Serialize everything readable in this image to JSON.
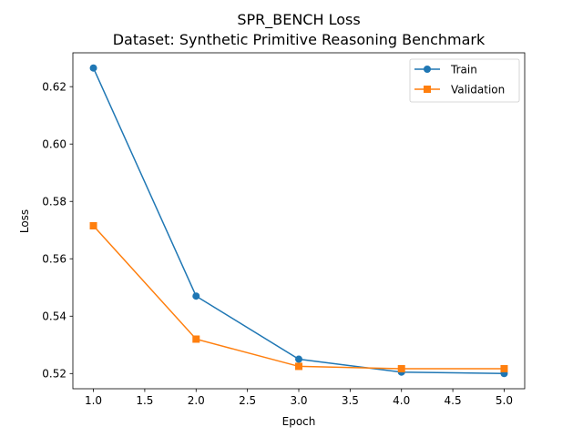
{
  "chart_data": {
    "type": "line",
    "title": "SPR_BENCH Loss",
    "subtitle": "Dataset: Synthetic Primitive Reasoning Benchmark",
    "xlabel": "Epoch",
    "ylabel": "Loss",
    "xlim": [
      0.8,
      5.2
    ],
    "ylim": [
      0.5147,
      0.6318
    ],
    "x_ticks": [
      "1.0",
      "1.5",
      "2.0",
      "2.5",
      "3.0",
      "3.5",
      "4.0",
      "4.5",
      "5.0"
    ],
    "y_ticks": [
      "0.52",
      "0.54",
      "0.56",
      "0.58",
      "0.60",
      "0.62"
    ],
    "grid": false,
    "legend_position": "top-right",
    "x": [
      1,
      2,
      3,
      4,
      5
    ],
    "series": [
      {
        "name": "Train",
        "values": [
          0.6265,
          0.547,
          0.525,
          0.5205,
          0.52
        ],
        "color": "#1f77b4",
        "marker": "circle"
      },
      {
        "name": "Validation",
        "values": [
          0.5715,
          0.532,
          0.5225,
          0.5217,
          0.5217
        ],
        "color": "#ff7f0e",
        "marker": "square"
      }
    ]
  }
}
